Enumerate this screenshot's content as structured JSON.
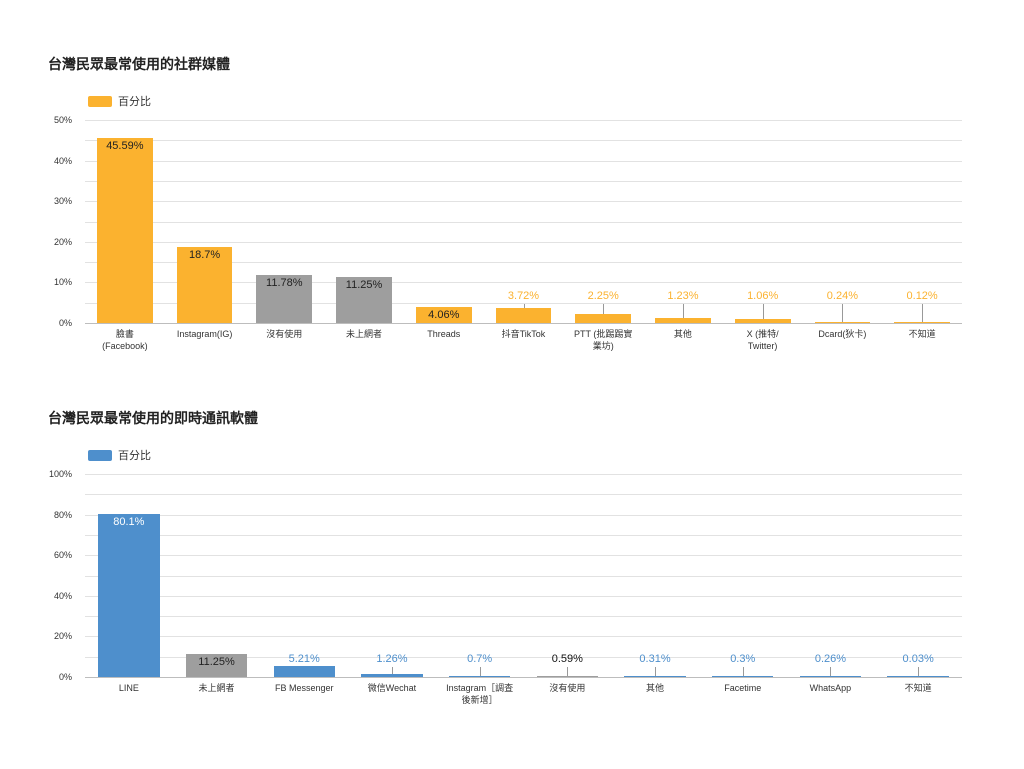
{
  "chart_data": [
    {
      "type": "bar",
      "title": "台灣民眾最常使用的社群媒體",
      "legend": [
        "百分比"
      ],
      "legend_position": "top-left",
      "xlabel": "",
      "ylabel": "",
      "ylim": [
        0,
        50
      ],
      "yticks": [
        "0%",
        "10%",
        "20%",
        "30%",
        "40%",
        "50%"
      ],
      "grid": true,
      "categories": [
        "臉書\n(Facebook)",
        "Instagram(IG)",
        "沒有使用",
        "未上網者",
        "Threads",
        "抖音TikTok",
        "PTT (批踢踢實\n業坊)",
        "其他",
        "X (推特/\nTwitter)",
        "Dcard(狄卡)",
        "不知道"
      ],
      "values": [
        45.59,
        18.7,
        11.78,
        11.25,
        4.06,
        3.72,
        2.25,
        1.23,
        1.06,
        0.24,
        0.12
      ],
      "value_labels": [
        "45.59%",
        "18.7%",
        "11.78%",
        "11.25%",
        "4.06%",
        "3.72%",
        "2.25%",
        "1.23%",
        "1.06%",
        "0.24%",
        "0.12%"
      ],
      "bar_colors": [
        "#fbb22f",
        "#fbb22f",
        "#9e9e9e",
        "#9e9e9e",
        "#fbb22f",
        "#fbb22f",
        "#fbb22f",
        "#fbb22f",
        "#fbb22f",
        "#fbb22f",
        "#fbb22f"
      ],
      "series": [
        {
          "name": "百分比",
          "color": "#fbb22f"
        }
      ]
    },
    {
      "type": "bar",
      "title": "台灣民眾最常使用的即時通訊軟體",
      "legend": [
        "百分比"
      ],
      "legend_position": "top-left",
      "xlabel": "",
      "ylabel": "",
      "ylim": [
        0,
        100
      ],
      "yticks": [
        "0%",
        "20%",
        "40%",
        "60%",
        "80%",
        "100%"
      ],
      "grid": true,
      "categories": [
        "LINE",
        "未上網者",
        "FB Messenger",
        "微信Wechat",
        "Instagram［調査\n後新增］",
        "沒有使用",
        "其他",
        "Facetime",
        "WhatsApp",
        "不知道"
      ],
      "values": [
        80.1,
        11.25,
        5.21,
        1.26,
        0.7,
        0.59,
        0.31,
        0.3,
        0.26,
        0.03
      ],
      "value_labels": [
        "80.1%",
        "11.25%",
        "5.21%",
        "1.26%",
        "0.7%",
        "0.59%",
        "0.31%",
        "0.3%",
        "0.26%",
        "0.03%"
      ],
      "bar_colors": [
        "#4e8fcc",
        "#9e9e9e",
        "#4e8fcc",
        "#4e8fcc",
        "#4e8fcc",
        "#9e9e9e",
        "#4e8fcc",
        "#4e8fcc",
        "#4e8fcc",
        "#4e8fcc"
      ],
      "series": [
        {
          "name": "百分比",
          "color": "#4e8fcc"
        }
      ]
    }
  ],
  "charts": {
    "social": {
      "title": "台灣民眾最常使用的社群媒體",
      "legend_label": "百分比",
      "accent": "#fbb22f"
    },
    "messaging": {
      "title": "台灣民眾最常使用的即時通訊軟體",
      "legend_label": "百分比",
      "accent": "#4e8fcc"
    }
  },
  "colors": {
    "orange": "#fbb22f",
    "blue": "#4e8fcc",
    "gray": "#9e9e9e"
  }
}
